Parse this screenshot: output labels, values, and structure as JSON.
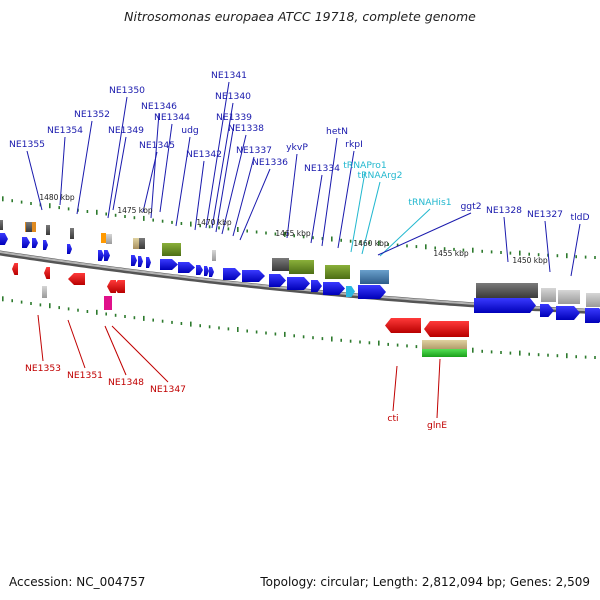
{
  "title": "Nitrosomonas europaea ATCC 19718, complete genome",
  "accession": "Accession: NC_004757",
  "summary": "Topology: circular; Length: 2,812,094 bp; Genes: 2,509",
  "colors": {
    "top_label": "#1a1aad",
    "bottom_label": "#c00000",
    "rna_label": "#22b8cf",
    "backbone": "#8a8a8a",
    "tick": "#2d7a2d",
    "gene_forward": "#1515e0",
    "gene_reverse": "#ee1111"
  },
  "scale_labels": [
    {
      "text": "1480 kbp"
    },
    {
      "text": "1475 kbp"
    },
    {
      "text": "1470 kbp"
    },
    {
      "text": "1465 kbp"
    },
    {
      "text": "1460 kbp"
    },
    {
      "text": "1455 kbp"
    },
    {
      "text": "1450 kbp"
    }
  ],
  "top_genes": [
    {
      "label": "NE1355",
      "kind": "gene"
    },
    {
      "label": "NE1354",
      "kind": "gene"
    },
    {
      "label": "NE1352",
      "kind": "gene"
    },
    {
      "label": "NE1350",
      "kind": "gene"
    },
    {
      "label": "NE1349",
      "kind": "gene"
    },
    {
      "label": "NE1346",
      "kind": "gene"
    },
    {
      "label": "NE1345",
      "kind": "gene"
    },
    {
      "label": "NE1344",
      "kind": "gene"
    },
    {
      "label": "udg",
      "kind": "gene"
    },
    {
      "label": "NE1342",
      "kind": "gene"
    },
    {
      "label": "NE1341",
      "kind": "gene"
    },
    {
      "label": "NE1340",
      "kind": "gene"
    },
    {
      "label": "NE1339",
      "kind": "gene"
    },
    {
      "label": "NE1338",
      "kind": "gene"
    },
    {
      "label": "NE1337",
      "kind": "gene"
    },
    {
      "label": "NE1336",
      "kind": "gene"
    },
    {
      "label": "ykvP",
      "kind": "gene"
    },
    {
      "label": "NE1334",
      "kind": "gene"
    },
    {
      "label": "hetN",
      "kind": "gene"
    },
    {
      "label": "rkpI",
      "kind": "gene"
    },
    {
      "label": "tRNAPro1",
      "kind": "rna"
    },
    {
      "label": "tRNAArg2",
      "kind": "rna"
    },
    {
      "label": "tRNAHis1",
      "kind": "rna"
    },
    {
      "label": "ggt2",
      "kind": "gene"
    },
    {
      "label": "NE1328",
      "kind": "gene"
    },
    {
      "label": "NE1327",
      "kind": "gene"
    },
    {
      "label": "tldD",
      "kind": "gene"
    }
  ],
  "bottom_genes": [
    {
      "label": "NE1353"
    },
    {
      "label": "NE1351"
    },
    {
      "label": "NE1348"
    },
    {
      "label": "NE1347"
    },
    {
      "label": "cti"
    },
    {
      "label": "glnE"
    }
  ]
}
